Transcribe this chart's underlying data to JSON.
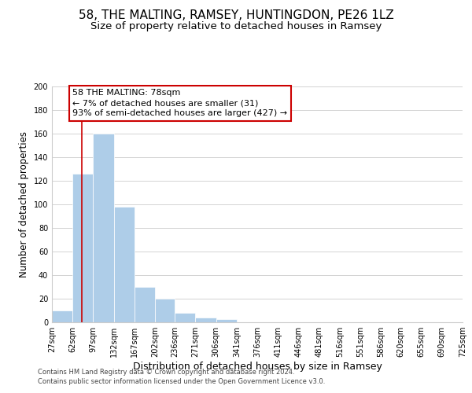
{
  "title": "58, THE MALTING, RAMSEY, HUNTINGDON, PE26 1LZ",
  "subtitle": "Size of property relative to detached houses in Ramsey",
  "xlabel": "Distribution of detached houses by size in Ramsey",
  "ylabel": "Number of detached properties",
  "bar_values": [
    10,
    126,
    160,
    98,
    30,
    20,
    8,
    4,
    3,
    0,
    0,
    0,
    0,
    0,
    0,
    0,
    0,
    0,
    0,
    0
  ],
  "bin_edges": [
    27,
    62,
    97,
    132,
    167,
    202,
    236,
    271,
    306,
    341,
    376,
    411,
    446,
    481,
    516,
    551,
    586,
    620,
    655,
    690,
    725
  ],
  "tick_labels": [
    "27sqm",
    "62sqm",
    "97sqm",
    "132sqm",
    "167sqm",
    "202sqm",
    "236sqm",
    "271sqm",
    "306sqm",
    "341sqm",
    "376sqm",
    "411sqm",
    "446sqm",
    "481sqm",
    "516sqm",
    "551sqm",
    "586sqm",
    "620sqm",
    "655sqm",
    "690sqm",
    "725sqm"
  ],
  "bar_color": "#aecde8",
  "bar_edge_color": "#ffffff",
  "red_line_x": 78,
  "ylim": [
    0,
    200
  ],
  "yticks": [
    0,
    20,
    40,
    60,
    80,
    100,
    120,
    140,
    160,
    180,
    200
  ],
  "annotation_title": "58 THE MALTING: 78sqm",
  "annotation_line1": "← 7% of detached houses are smaller (31)",
  "annotation_line2": "93% of semi-detached houses are larger (427) →",
  "annotation_box_color": "#ffffff",
  "annotation_box_edge": "#cc0000",
  "footer1": "Contains HM Land Registry data © Crown copyright and database right 2024.",
  "footer2": "Contains public sector information licensed under the Open Government Licence v3.0.",
  "background_color": "#ffffff",
  "grid_color": "#cccccc",
  "title_fontsize": 11,
  "subtitle_fontsize": 9.5,
  "tick_fontsize": 7,
  "ylabel_fontsize": 8.5,
  "xlabel_fontsize": 9,
  "annot_fontsize": 8,
  "footer_fontsize": 6
}
